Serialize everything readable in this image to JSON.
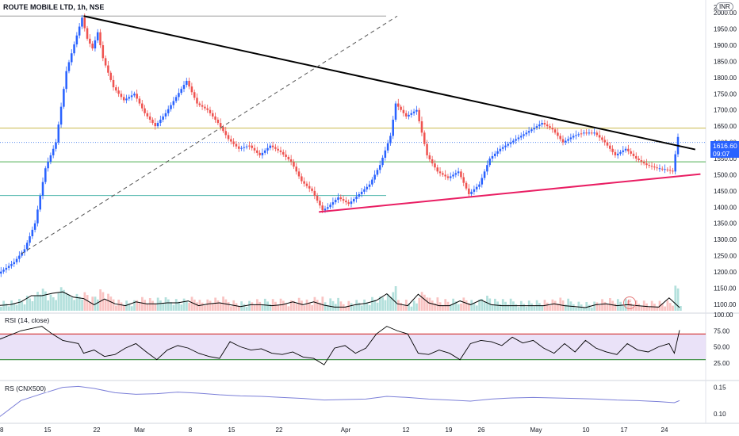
{
  "header": {
    "symbol": "ROUTE MOBILE LTD, 1h, NSE",
    "currency": "INR",
    "axis_top_partial": "2("
  },
  "price_badge": {
    "value": "1616.60",
    "countdown": "09:07"
  },
  "earnings_badge": "E",
  "panes": {
    "rsi_label": "RSI (14, close)",
    "rs_label": "RS (CNX500)"
  },
  "colors": {
    "up": "#2962ff",
    "down": "#ef5350",
    "trend_top": "#000000",
    "trend_bottom": "#e91e63",
    "dashed": "#555555",
    "rsi_band": "#e1d5f5",
    "rsi_upper": "#d32f2f",
    "rsi_lower": "#388e3c",
    "rs_line": "#7b7fd8",
    "level_yellow": "#c9b84c",
    "level_green": "#4caf50",
    "level_teal": "#4db6ac",
    "level_blue_dotted": "#5b8def"
  },
  "chart_data": {
    "type": "candlestick",
    "title": "ROUTE MOBILE LTD, 1h, NSE",
    "ylim": [
      1080,
      2020
    ],
    "y_ticks": [
      2000,
      1950,
      1900,
      1850,
      1800,
      1750,
      1700,
      1650,
      1600,
      1550,
      1500,
      1450,
      1400,
      1350,
      1300,
      1250,
      1200,
      1150,
      1100
    ],
    "x_ticks": [
      "8",
      "15",
      "22",
      "Mar",
      "8",
      "15",
      "22",
      "Apr",
      "12",
      "19",
      "26",
      "May",
      "10",
      "17",
      "24"
    ],
    "price_path": [
      [
        0,
        1195
      ],
      [
        3,
        1230
      ],
      [
        5,
        1270
      ],
      [
        7,
        1350
      ],
      [
        9,
        1520
      ],
      [
        11,
        1600
      ],
      [
        13,
        1820
      ],
      [
        15,
        1930
      ],
      [
        16,
        1985
      ],
      [
        17,
        1920
      ],
      [
        18,
        1890
      ],
      [
        19,
        1940
      ],
      [
        20,
        1860
      ],
      [
        22,
        1770
      ],
      [
        24,
        1730
      ],
      [
        26,
        1750
      ],
      [
        28,
        1690
      ],
      [
        30,
        1650
      ],
      [
        32,
        1690
      ],
      [
        34,
        1740
      ],
      [
        36,
        1790
      ],
      [
        38,
        1720
      ],
      [
        40,
        1700
      ],
      [
        42,
        1660
      ],
      [
        44,
        1610
      ],
      [
        46,
        1580
      ],
      [
        48,
        1590
      ],
      [
        50,
        1560
      ],
      [
        52,
        1590
      ],
      [
        54,
        1570
      ],
      [
        56,
        1540
      ],
      [
        58,
        1480
      ],
      [
        60,
        1450
      ],
      [
        62,
        1390
      ],
      [
        63,
        1400
      ],
      [
        65,
        1430
      ],
      [
        67,
        1410
      ],
      [
        69,
        1440
      ],
      [
        71,
        1470
      ],
      [
        73,
        1530
      ],
      [
        75,
        1620
      ],
      [
        76,
        1720
      ],
      [
        77,
        1700
      ],
      [
        78,
        1680
      ],
      [
        80,
        1700
      ],
      [
        82,
        1560
      ],
      [
        84,
        1510
      ],
      [
        86,
        1490
      ],
      [
        88,
        1510
      ],
      [
        90,
        1440
      ],
      [
        92,
        1470
      ],
      [
        94,
        1550
      ],
      [
        96,
        1580
      ],
      [
        98,
        1600
      ],
      [
        100,
        1620
      ],
      [
        102,
        1640
      ],
      [
        104,
        1660
      ],
      [
        106,
        1640
      ],
      [
        108,
        1600
      ],
      [
        110,
        1620
      ],
      [
        112,
        1630
      ],
      [
        114,
        1630
      ],
      [
        116,
        1600
      ],
      [
        118,
        1560
      ],
      [
        120,
        1580
      ],
      [
        122,
        1550
      ],
      [
        124,
        1530
      ],
      [
        126,
        1520
      ],
      [
        128,
        1515
      ],
      [
        129,
        1510
      ],
      [
        130,
        1616.6
      ]
    ],
    "levels": [
      {
        "price": 1990,
        "color": "#9e9e9e"
      },
      {
        "price": 1644,
        "color": "#c9b84c"
      },
      {
        "price": 1600,
        "color": "#5b8def",
        "dotted": true
      },
      {
        "price": 1540,
        "color": "#4caf50"
      },
      {
        "price": 1436,
        "color": "#4db6ac"
      }
    ],
    "trendlines": [
      {
        "from": [
          16,
          1990
        ],
        "to": [
          133,
          1578
        ],
        "color": "#000000"
      },
      {
        "from": [
          61,
          1385
        ],
        "to": [
          134,
          1502
        ],
        "color": "#e91e63"
      },
      {
        "from": [
          4,
          1255
        ],
        "to": [
          76,
          1990
        ],
        "color": "#555555",
        "dashed": true
      }
    ],
    "rsi": {
      "name": "RSI (14, close)",
      "ylim": [
        0,
        100
      ],
      "y_ticks": [
        100,
        75,
        50,
        25
      ],
      "band": [
        30,
        70
      ],
      "values": [
        [
          0,
          62
        ],
        [
          4,
          75
        ],
        [
          8,
          82
        ],
        [
          10,
          70
        ],
        [
          12,
          60
        ],
        [
          15,
          55
        ],
        [
          16,
          40
        ],
        [
          18,
          45
        ],
        [
          20,
          35
        ],
        [
          22,
          38
        ],
        [
          24,
          48
        ],
        [
          26,
          55
        ],
        [
          28,
          42
        ],
        [
          30,
          30
        ],
        [
          32,
          45
        ],
        [
          34,
          52
        ],
        [
          36,
          48
        ],
        [
          38,
          40
        ],
        [
          40,
          35
        ],
        [
          42,
          32
        ],
        [
          44,
          58
        ],
        [
          46,
          50
        ],
        [
          48,
          45
        ],
        [
          50,
          47
        ],
        [
          52,
          40
        ],
        [
          54,
          38
        ],
        [
          56,
          42
        ],
        [
          58,
          34
        ],
        [
          60,
          32
        ],
        [
          62,
          22
        ],
        [
          64,
          48
        ],
        [
          66,
          52
        ],
        [
          68,
          40
        ],
        [
          70,
          48
        ],
        [
          72,
          70
        ],
        [
          74,
          82
        ],
        [
          76,
          75
        ],
        [
          78,
          70
        ],
        [
          80,
          40
        ],
        [
          82,
          38
        ],
        [
          84,
          45
        ],
        [
          86,
          40
        ],
        [
          88,
          30
        ],
        [
          90,
          55
        ],
        [
          92,
          60
        ],
        [
          94,
          58
        ],
        [
          96,
          52
        ],
        [
          98,
          65
        ],
        [
          100,
          56
        ],
        [
          102,
          60
        ],
        [
          104,
          48
        ],
        [
          106,
          40
        ],
        [
          108,
          55
        ],
        [
          110,
          42
        ],
        [
          112,
          60
        ],
        [
          114,
          48
        ],
        [
          116,
          42
        ],
        [
          118,
          38
        ],
        [
          120,
          55
        ],
        [
          122,
          45
        ],
        [
          124,
          42
        ],
        [
          126,
          50
        ],
        [
          128,
          55
        ],
        [
          129,
          40
        ],
        [
          130,
          76
        ]
      ]
    },
    "rs": {
      "name": "RS (CNX500)",
      "y_ticks": [
        0.15,
        0.1
      ],
      "ylim": [
        0.085,
        0.16
      ],
      "values": [
        [
          0,
          0.095
        ],
        [
          4,
          0.125
        ],
        [
          8,
          0.138
        ],
        [
          12,
          0.15
        ],
        [
          15,
          0.152
        ],
        [
          18,
          0.148
        ],
        [
          22,
          0.14
        ],
        [
          26,
          0.137
        ],
        [
          30,
          0.138
        ],
        [
          34,
          0.141
        ],
        [
          38,
          0.139
        ],
        [
          42,
          0.136
        ],
        [
          46,
          0.134
        ],
        [
          50,
          0.133
        ],
        [
          54,
          0.131
        ],
        [
          58,
          0.129
        ],
        [
          62,
          0.126
        ],
        [
          66,
          0.127
        ],
        [
          70,
          0.128
        ],
        [
          74,
          0.133
        ],
        [
          78,
          0.131
        ],
        [
          82,
          0.128
        ],
        [
          86,
          0.126
        ],
        [
          90,
          0.124
        ],
        [
          94,
          0.128
        ],
        [
          98,
          0.13
        ],
        [
          102,
          0.131
        ],
        [
          106,
          0.13
        ],
        [
          110,
          0.129
        ],
        [
          114,
          0.128
        ],
        [
          118,
          0.126
        ],
        [
          122,
          0.125
        ],
        [
          126,
          0.123
        ],
        [
          129,
          0.121
        ],
        [
          130,
          0.125
        ]
      ]
    }
  }
}
